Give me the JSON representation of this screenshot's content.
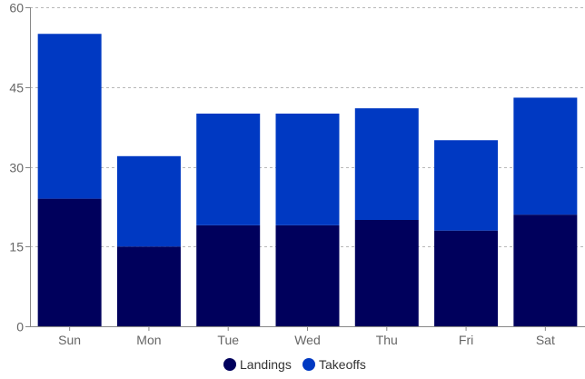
{
  "chart_data": {
    "type": "bar",
    "stacked": true,
    "categories": [
      "Sun",
      "Mon",
      "Tue",
      "Wed",
      "Thu",
      "Fri",
      "Sat"
    ],
    "series": [
      {
        "name": "Landings",
        "color": "#00005c",
        "values": [
          24,
          15,
          19,
          19,
          20,
          18,
          21
        ]
      },
      {
        "name": "Takeoffs",
        "color": "#0039c2",
        "values": [
          31,
          17,
          21,
          21,
          21,
          17,
          22
        ]
      }
    ],
    "yticks": [
      0,
      15,
      30,
      45,
      60
    ],
    "ylim": [
      0,
      60
    ],
    "grid": true,
    "legend_position": "bottom",
    "title": "",
    "xlabel": "",
    "ylabel": ""
  }
}
